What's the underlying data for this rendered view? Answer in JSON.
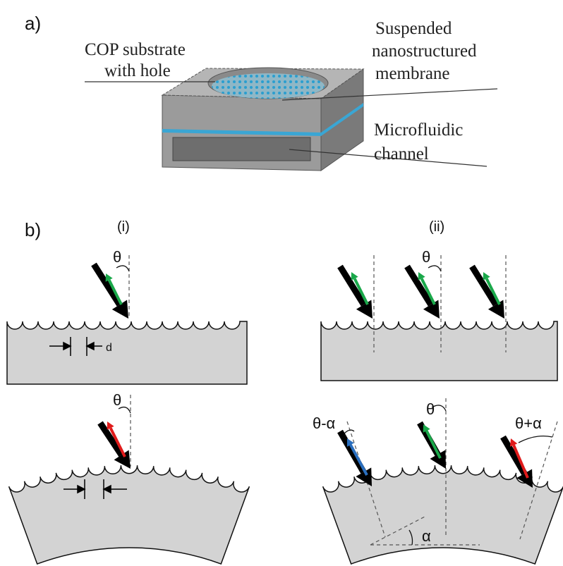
{
  "panel_a": {
    "label": "a)",
    "cop_label": [
      "COP substrate",
      "with hole"
    ],
    "membrane_label": [
      "Suspended",
      "nanostructured",
      "membrane"
    ],
    "channel_label": [
      "Microfluidic",
      "channel"
    ]
  },
  "panel_b": {
    "label": "b)",
    "i": {
      "label": "(i)",
      "flat_angle": "θ",
      "spacing": "d",
      "curved_angle": "θ"
    },
    "ii": {
      "label": "(ii)",
      "flat_angle": "θ",
      "curved_left_angle": "θ-α",
      "curved_center_angle": "θ",
      "curved_right_angle": "θ+α",
      "tilt_angle": "α"
    }
  }
}
